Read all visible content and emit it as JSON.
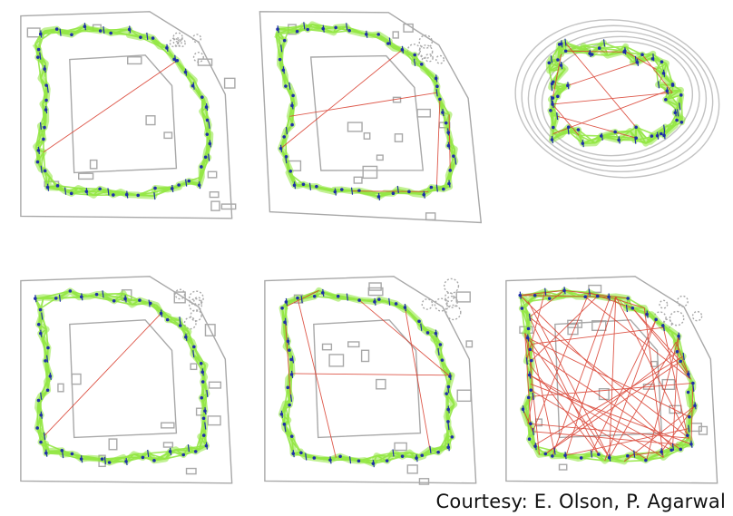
{
  "figure": {
    "courtesy": "Courtesy: E. Olson, P. Agarwal",
    "colors": {
      "background": "#ffffff",
      "floorplan": "#a8a8a8",
      "constraint_edges": "#8ee63a",
      "outlier_edges": "#d83a2a",
      "pose_nodes": "#1f2fa8"
    }
  }
}
